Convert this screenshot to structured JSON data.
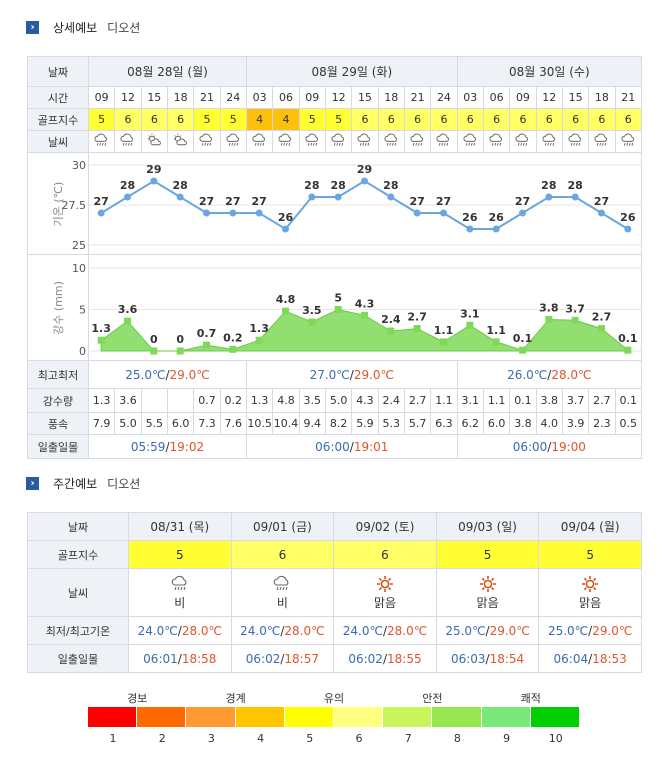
{
  "detail_section": {
    "icon": "arrow-icon",
    "title": "상세예보",
    "location": "디오션"
  },
  "weekly_section": {
    "icon": "arrow-icon",
    "title": "주간예보",
    "location": "디오션"
  },
  "detail": {
    "row_labels": {
      "date": "날짜",
      "time": "시간",
      "golf": "골프지수",
      "weather": "날씨",
      "temp": "기온 (℃)",
      "rain": "강수 (mm)",
      "minmax": "최고최저",
      "precip": "강수량",
      "wind": "풍속",
      "sun": "일출일몰"
    },
    "days": [
      {
        "date": "08월 28일 (월)",
        "min": "25.0℃",
        "sep": "/",
        "max": "29.0℃",
        "sunrise": "05:59",
        "sunset": "19:02"
      },
      {
        "date": "08월 29일 (화)",
        "min": "27.0℃",
        "sep": "/",
        "max": "29.0℃",
        "sunrise": "06:00",
        "sunset": "19:01"
      },
      {
        "date": "08월 30일 (수)",
        "min": "26.0℃",
        "sep": "/",
        "max": "28.0℃",
        "sunrise": "06:00",
        "sunset": "19:00"
      }
    ],
    "times": [
      "09",
      "12",
      "15",
      "18",
      "21",
      "24",
      "03",
      "06",
      "09",
      "12",
      "15",
      "18",
      "21",
      "24",
      "03",
      "06",
      "09",
      "12",
      "15",
      "18",
      "21"
    ],
    "golf": [
      "5",
      "6",
      "6",
      "6",
      "5",
      "5",
      "4",
      "4",
      "5",
      "5",
      "6",
      "6",
      "6",
      "6",
      "6",
      "6",
      "6",
      "6",
      "6",
      "6",
      "6"
    ],
    "weather_icons": [
      "rain-cloud-icon",
      "rain-cloud-icon",
      "partly-cloudy-icon",
      "partly-cloudy-icon",
      "rain-cloud-icon",
      "rain-cloud-icon",
      "rain-cloud-icon",
      "rain-cloud-icon",
      "rain-cloud-icon",
      "rain-cloud-icon",
      "rain-cloud-icon",
      "rain-cloud-icon",
      "rain-cloud-icon",
      "rain-cloud-icon",
      "rain-cloud-icon",
      "rain-cloud-icon",
      "rain-cloud-icon",
      "rain-cloud-icon",
      "rain-cloud-icon",
      "rain-cloud-icon",
      "rain-cloud-icon"
    ],
    "precip": [
      "1.3",
      "3.6",
      "",
      "",
      "0.7",
      "0.2",
      "1.3",
      "4.8",
      "3.5",
      "5.0",
      "4.3",
      "2.4",
      "2.7",
      "1.1",
      "3.1",
      "1.1",
      "0.1",
      "3.8",
      "3.7",
      "2.7",
      "0.1"
    ],
    "wind": [
      "7.9",
      "5.0",
      "5.5",
      "6.0",
      "7.3",
      "7.6",
      "10.5",
      "10.4",
      "9.4",
      "8.2",
      "5.9",
      "5.3",
      "5.7",
      "6.3",
      "6.2",
      "6.0",
      "3.8",
      "4.0",
      "3.9",
      "2.3",
      "0.5"
    ]
  },
  "chart_data": [
    {
      "type": "line",
      "ylabel": "기온 (℃)",
      "yticks": [
        "30",
        "27.5",
        "25"
      ],
      "ylim": [
        25,
        30
      ],
      "x": [
        "09",
        "12",
        "15",
        "18",
        "21",
        "24",
        "03",
        "06",
        "09",
        "12",
        "15",
        "18",
        "21",
        "24",
        "03",
        "06",
        "09",
        "12",
        "15",
        "18",
        "21"
      ],
      "values": [
        27,
        28,
        29,
        28,
        27,
        27,
        27,
        26,
        28,
        28,
        29,
        28,
        27,
        27,
        26,
        26,
        27,
        28,
        28,
        27,
        26
      ],
      "labels": [
        "27",
        "28",
        "29",
        "28",
        "27",
        "27",
        "27",
        "26",
        "28",
        "28",
        "29",
        "28",
        "27",
        "27",
        "26",
        "26",
        "27",
        "28",
        "28",
        "27",
        "26"
      ],
      "color": "#6aa6e0",
      "grid": true
    },
    {
      "type": "area",
      "ylabel": "강수 (mm)",
      "yticks": [
        "10",
        "5",
        "0"
      ],
      "ylim": [
        0,
        10
      ],
      "x": [
        "09",
        "12",
        "15",
        "18",
        "21",
        "24",
        "03",
        "06",
        "09",
        "12",
        "15",
        "18",
        "21",
        "24",
        "03",
        "06",
        "09",
        "12",
        "15",
        "18",
        "21"
      ],
      "values": [
        1.3,
        3.6,
        0,
        0,
        0.7,
        0.2,
        1.3,
        4.8,
        3.5,
        5,
        4.3,
        2.4,
        2.7,
        1.1,
        3.1,
        1.1,
        0.1,
        3.8,
        3.7,
        2.7,
        0.1
      ],
      "labels": [
        "1.3",
        "3.6",
        "0",
        "0",
        "0.7",
        "0.2",
        "1.3",
        "4.8",
        "3.5",
        "5",
        "4.3",
        "2.4",
        "2.7",
        "1.1",
        "3.1",
        "1.1",
        "0.1",
        "3.8",
        "3.7",
        "2.7",
        "0.1"
      ],
      "color": "#7ed957",
      "grid": true
    }
  ],
  "weekly": {
    "row_labels": {
      "date": "날짜",
      "golf": "골프지수",
      "weather": "날씨",
      "temp": "최저/최고기온",
      "sun": "일출일몰"
    },
    "days": [
      {
        "date": "08/31 (목)",
        "golf": "5",
        "icon": "rain-cloud-icon",
        "weather": "비",
        "min": "24.0℃",
        "sep": "/",
        "max": "28.0℃",
        "sunrise": "06:01",
        "sunset": "18:58"
      },
      {
        "date": "09/01 (금)",
        "golf": "6",
        "icon": "rain-cloud-icon",
        "weather": "비",
        "min": "24.0℃",
        "sep": "/",
        "max": "28.0℃",
        "sunrise": "06:02",
        "sunset": "18:57"
      },
      {
        "date": "09/02 (토)",
        "golf": "6",
        "icon": "sun-icon",
        "weather": "맑음",
        "min": "24.0℃",
        "sep": "/",
        "max": "28.0℃",
        "sunrise": "06:02",
        "sunset": "18:55"
      },
      {
        "date": "09/03 (일)",
        "golf": "5",
        "icon": "sun-icon",
        "weather": "맑음",
        "min": "25.0℃",
        "sep": "/",
        "max": "29.0℃",
        "sunrise": "06:03",
        "sunset": "18:54"
      },
      {
        "date": "09/04 (월)",
        "golf": "5",
        "icon": "sun-icon",
        "weather": "맑음",
        "min": "25.0℃",
        "sep": "/",
        "max": "29.0℃",
        "sunrise": "06:04",
        "sunset": "18:53"
      }
    ]
  },
  "scale": {
    "labels": [
      {
        "text": "경보",
        "index": 2
      },
      {
        "text": "경계",
        "index": 4
      },
      {
        "text": "유의",
        "index": 6
      },
      {
        "text": "안전",
        "index": 8
      },
      {
        "text": "쾌적",
        "index": 10
      }
    ],
    "numbers": [
      "1",
      "2",
      "3",
      "4",
      "5",
      "6",
      "7",
      "8",
      "9",
      "10"
    ],
    "colors": [
      "#ff0000",
      "#ff6a00",
      "#ff9b30",
      "#ffc400",
      "#ffff00",
      "#ffff80",
      "#c8f55a",
      "#96e650",
      "#78e878",
      "#00d000"
    ]
  }
}
